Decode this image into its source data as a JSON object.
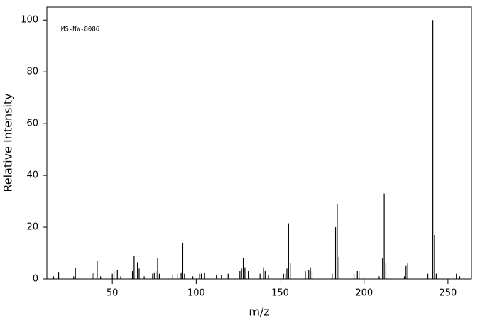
{
  "chart_data": {
    "type": "bar",
    "annotation": "MS-NW-8086",
    "x_label": "m/z",
    "y_label": "Relative Intensity",
    "x": [
      15,
      18,
      27,
      28,
      38,
      39,
      41,
      43,
      50,
      51,
      53,
      55,
      62,
      63,
      65,
      66,
      69,
      74,
      75,
      76,
      77,
      78,
      86,
      89,
      91,
      92,
      93,
      98,
      102,
      103,
      105,
      112,
      115,
      119,
      126,
      127,
      128,
      129,
      131,
      138,
      140,
      141,
      143,
      152,
      153,
      154,
      155,
      156,
      165,
      167,
      168,
      169,
      181,
      183,
      184,
      185,
      194,
      196,
      197,
      209,
      211,
      212,
      213,
      224,
      225,
      226,
      238,
      241,
      242,
      243,
      255,
      257
    ],
    "values": [
      1,
      2.7,
      1,
      4.4,
      2,
      2.5,
      7,
      1,
      2,
      3,
      3.5,
      1,
      3,
      8.8,
      6.5,
      4,
      1,
      2,
      2.5,
      3,
      8,
      2,
      1.5,
      2,
      2.5,
      14,
      2,
      1,
      2,
      2,
      2.5,
      1.5,
      1.5,
      2,
      3,
      4,
      8,
      4.5,
      3,
      2,
      4.5,
      3,
      1.5,
      2,
      2,
      4,
      21.5,
      6,
      3,
      3.5,
      4.5,
      3,
      2,
      20,
      29,
      8.5,
      2,
      3,
      3,
      1,
      8,
      33,
      6,
      1,
      5,
      6,
      2,
      100,
      17,
      2,
      2,
      1
    ],
    "color": "#000000",
    "xlim": [
      11,
      264
    ],
    "xticks": [
      50,
      100,
      150,
      200,
      250
    ],
    "ylim": [
      0,
      105
    ],
    "yticks": [
      0,
      20,
      40,
      60,
      80,
      100
    ]
  }
}
